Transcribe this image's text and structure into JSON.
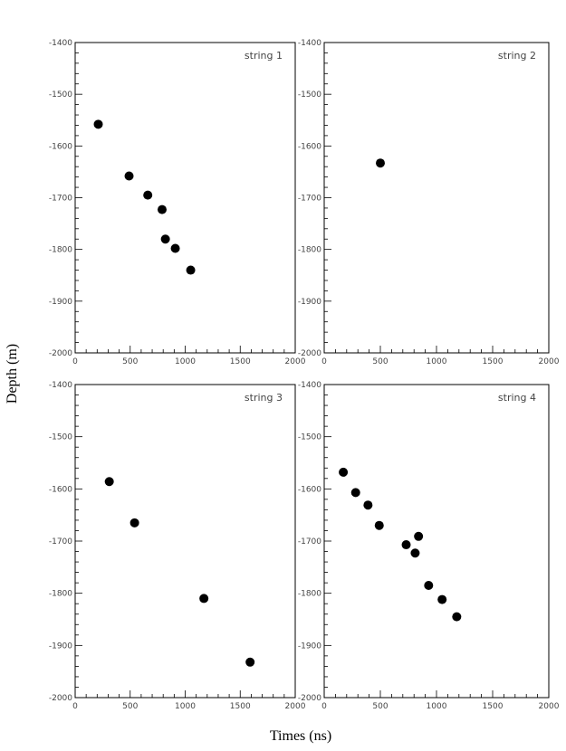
{
  "chart_data": {
    "type": "scatter",
    "xlabel": "Times (ns)",
    "ylabel": "Depth (m)",
    "xlim": [
      0,
      2000
    ],
    "ylim": [
      -2000,
      -1400
    ],
    "x_ticks": [
      0,
      500,
      1000,
      1500,
      2000
    ],
    "y_ticks": [
      -1400,
      -1500,
      -1600,
      -1700,
      -1800,
      -1900,
      -2000
    ],
    "x_tick_labels": [
      "0",
      "500",
      "1000",
      "1500",
      "2000"
    ],
    "y_tick_labels": [
      "-1400",
      "-1500",
      "-1600",
      "-1700",
      "-1800",
      "-1900",
      "-2000"
    ],
    "marker_color": "#000000",
    "grid": false,
    "panels": [
      {
        "title": "string 1",
        "points": [
          {
            "x": 210,
            "y": -1558
          },
          {
            "x": 490,
            "y": -1658
          },
          {
            "x": 660,
            "y": -1695
          },
          {
            "x": 790,
            "y": -1723
          },
          {
            "x": 820,
            "y": -1780
          },
          {
            "x": 910,
            "y": -1798
          },
          {
            "x": 1050,
            "y": -1840
          }
        ]
      },
      {
        "title": "string 2",
        "points": [
          {
            "x": 500,
            "y": -1633
          }
        ]
      },
      {
        "title": "string 3",
        "points": [
          {
            "x": 310,
            "y": -1586
          },
          {
            "x": 540,
            "y": -1665
          },
          {
            "x": 1170,
            "y": -1810
          },
          {
            "x": 1590,
            "y": -1932
          }
        ]
      },
      {
        "title": "string 4",
        "points": [
          {
            "x": 170,
            "y": -1568
          },
          {
            "x": 280,
            "y": -1607
          },
          {
            "x": 390,
            "y": -1631
          },
          {
            "x": 490,
            "y": -1670
          },
          {
            "x": 730,
            "y": -1707
          },
          {
            "x": 810,
            "y": -1723
          },
          {
            "x": 840,
            "y": -1691
          },
          {
            "x": 930,
            "y": -1785
          },
          {
            "x": 1050,
            "y": -1812
          },
          {
            "x": 1180,
            "y": -1845
          }
        ]
      }
    ]
  }
}
